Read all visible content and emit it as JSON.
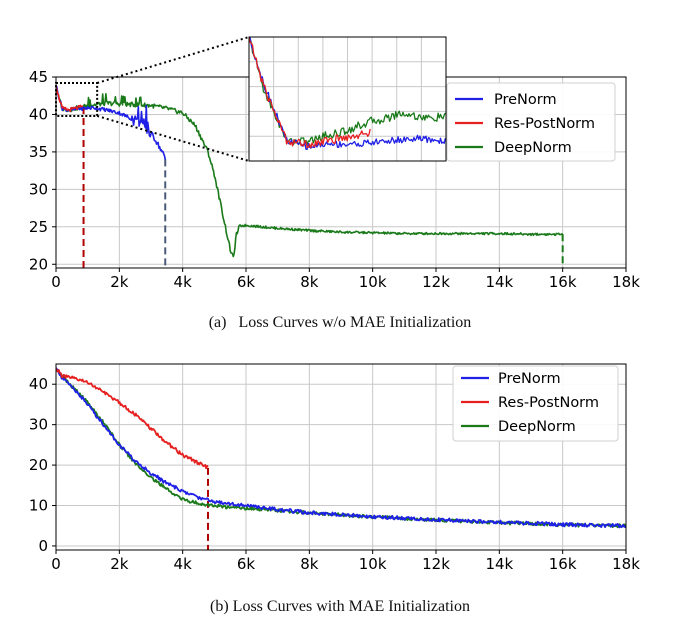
{
  "figure": {
    "caption_a": "(a)   Loss Curves w/o MAE Initialization",
    "caption_b": "(b) Loss Curves with MAE Initialization"
  },
  "chart_data": [
    {
      "id": "a",
      "type": "line",
      "title": "",
      "xlabel": "",
      "ylabel": "",
      "xlim": [
        0,
        18000
      ],
      "ylim": [
        19.5,
        45
      ],
      "grid": true,
      "x_ticks": [
        0,
        2000,
        4000,
        6000,
        8000,
        10000,
        12000,
        14000,
        16000,
        18000
      ],
      "x_tick_labels": [
        "0",
        "2k",
        "4k",
        "6k",
        "8k",
        "10k",
        "12k",
        "14k",
        "16k",
        "18k"
      ],
      "y_ticks": [
        20,
        25,
        30,
        35,
        40,
        45
      ],
      "y_tick_labels": [
        "20",
        "25",
        "30",
        "35",
        "40",
        "45"
      ],
      "legend": {
        "placement": "top-right",
        "entries": [
          "PreNorm",
          "Res-PostNorm",
          "DeepNorm"
        ]
      },
      "colors": {
        "PreNorm": "#1f1fe6",
        "Res-PostNorm": "#e61f1f",
        "DeepNorm": "#1a7a1a",
        "divergence_red": "#b00000",
        "divergence_blue": "#4a5a78"
      },
      "series": [
        {
          "name": "PreNorm",
          "color": "#1f1fe6",
          "x": [
            0,
            80,
            200,
            400,
            800,
            1200,
            1600,
            2000,
            2400,
            2600,
            2800,
            3000,
            3200,
            3400,
            3450
          ],
          "y": [
            44,
            42.5,
            40.8,
            40.6,
            40.8,
            40.9,
            40.6,
            40.2,
            39.4,
            39,
            38.5,
            37.5,
            36.2,
            34.6,
            34
          ]
        },
        {
          "name": "Res-PostNorm",
          "color": "#e61f1f",
          "x": [
            0,
            80,
            200,
            400,
            600,
            800,
            870
          ],
          "y": [
            44,
            42.4,
            40.8,
            40.6,
            40.8,
            41,
            41
          ]
        },
        {
          "name": "DeepNorm",
          "color": "#1a7a1a",
          "x": [
            0,
            80,
            200,
            400,
            800,
            1200,
            1600,
            2000,
            2500,
            3000,
            3500,
            4000,
            4400,
            4800,
            5000,
            5200,
            5400,
            5500,
            5600,
            5700,
            5800,
            6000,
            6500,
            7000,
            8000,
            9000,
            10000,
            11000,
            12000,
            13000,
            14000,
            15000,
            16000
          ],
          "y": [
            44,
            42.3,
            40.8,
            40.6,
            41,
            41.3,
            41.5,
            41.4,
            41.3,
            41.2,
            40.8,
            40.2,
            38.5,
            35,
            32,
            28,
            24,
            22,
            20.8,
            24,
            25.1,
            25.2,
            25,
            24.8,
            24.5,
            24.3,
            24.2,
            24.1,
            24.1,
            24.1,
            24.1,
            24.0,
            24.0
          ]
        }
      ],
      "divergence_markers": [
        {
          "series": "Res-PostNorm",
          "x": 870,
          "y_from": 41,
          "color": "#b00000"
        },
        {
          "series": "PreNorm",
          "x": 3450,
          "y_from": 34,
          "color": "#4a5a78"
        },
        {
          "series": "DeepNorm",
          "x": 16000,
          "y_from": 24,
          "color": "#1a7a1a"
        }
      ],
      "inset": {
        "x_range": [
          0,
          1300
        ],
        "y_range": [
          39.8,
          44.2
        ],
        "grid": true,
        "series": [
          {
            "name": "PreNorm",
            "x": [
              0,
              100,
              250,
              400,
              500,
              700,
              900,
              1100,
              1300
            ],
            "y": [
              44.2,
              42.5,
              40.5,
              40.3,
              40.4,
              40.4,
              40.5,
              40.6,
              40.5
            ]
          },
          {
            "name": "Res-PostNorm",
            "x": [
              0,
              100,
              250,
              400,
              500,
              700,
              800
            ],
            "y": [
              44.2,
              42.4,
              40.5,
              40.4,
              40.5,
              40.7,
              40.8
            ]
          },
          {
            "name": "DeepNorm",
            "x": [
              0,
              100,
              250,
              400,
              500,
              600,
              800,
              900,
              1000,
              1100,
              1200,
              1300
            ],
            "y": [
              44.2,
              42.3,
              40.5,
              40.5,
              40.7,
              40.8,
              41.2,
              41.3,
              41.5,
              41.4,
              41.3,
              41.4
            ]
          }
        ]
      }
    },
    {
      "id": "b",
      "type": "line",
      "title": "",
      "xlabel": "",
      "ylabel": "",
      "xlim": [
        0,
        18000
      ],
      "ylim": [
        -1,
        45
      ],
      "grid": true,
      "x_ticks": [
        0,
        2000,
        4000,
        6000,
        8000,
        10000,
        12000,
        14000,
        16000,
        18000
      ],
      "x_tick_labels": [
        "0",
        "2k",
        "4k",
        "6k",
        "8k",
        "10k",
        "12k",
        "14k",
        "16k",
        "18k"
      ],
      "y_ticks": [
        0,
        10,
        20,
        30,
        40
      ],
      "y_tick_labels": [
        "0",
        "10",
        "20",
        "30",
        "40"
      ],
      "legend": {
        "placement": "top-right",
        "entries": [
          "PreNorm",
          "Res-PostNorm",
          "DeepNorm"
        ]
      },
      "series": [
        {
          "name": "PreNorm",
          "color": "#1f1fe6",
          "x": [
            0,
            200,
            500,
            1000,
            1500,
            2000,
            2500,
            3000,
            3500,
            4000,
            4500,
            5000,
            5500,
            6000,
            7000,
            8000,
            9000,
            10000,
            11000,
            12000,
            13000,
            14000,
            15000,
            16000,
            17000,
            18000
          ],
          "y": [
            44,
            41.5,
            39.5,
            35,
            30,
            25,
            21,
            18,
            15.5,
            13.5,
            12,
            11,
            10.5,
            10,
            9,
            8.2,
            7.8,
            7.2,
            6.9,
            6.5,
            6.2,
            5.9,
            5.6,
            5.3,
            5.1,
            5.0
          ]
        },
        {
          "name": "Res-PostNorm",
          "color": "#e61f1f",
          "x": [
            0,
            200,
            500,
            1000,
            1500,
            2000,
            2500,
            3000,
            3500,
            4000,
            4500,
            4800
          ],
          "y": [
            44,
            42,
            41.5,
            40.5,
            38,
            35.5,
            32.5,
            29,
            25.5,
            22.5,
            20.5,
            19.3
          ]
        },
        {
          "name": "DeepNorm",
          "color": "#1a7a1a",
          "x": [
            0,
            200,
            500,
            1000,
            1500,
            2000,
            2500,
            3000,
            3500,
            4000,
            4500,
            5000,
            5500,
            6000,
            7000,
            8000,
            9000,
            10000,
            11000,
            12000,
            13000,
            14000,
            15000,
            16000,
            17000,
            18000
          ],
          "y": [
            44,
            41.8,
            39.5,
            35.5,
            30.5,
            25,
            20.5,
            17,
            14,
            11.5,
            10.5,
            10,
            9.5,
            9.3,
            8.8,
            8.2,
            7.7,
            7.2,
            6.8,
            6.4,
            6.1,
            5.8,
            5.5,
            5.2,
            5.1,
            5.0
          ]
        }
      ],
      "divergence_markers": [
        {
          "series": "Res-PostNorm",
          "x": 4800,
          "y_from": 19.3,
          "color": "#b00000"
        }
      ]
    }
  ]
}
